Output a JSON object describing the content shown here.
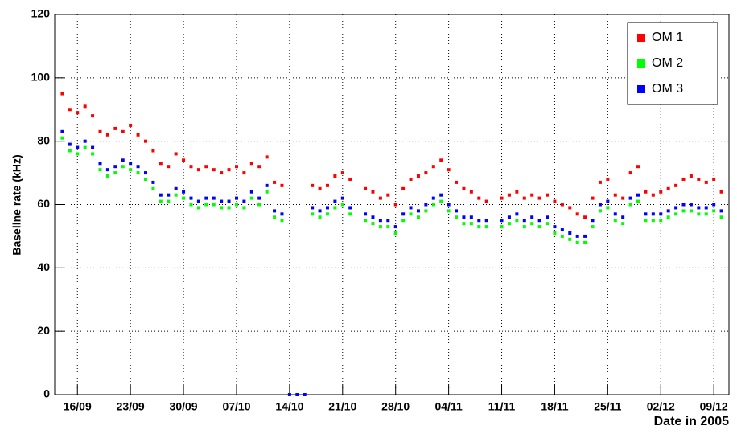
{
  "chart_data": {
    "type": "scatter",
    "y_label": "Baseline rate (kHz)",
    "x_label": "Date in 2005",
    "x": [
      "2005-09-14",
      "2005-09-15",
      "2005-09-16",
      "2005-09-17",
      "2005-09-18",
      "2005-09-19",
      "2005-09-20",
      "2005-09-21",
      "2005-09-22",
      "2005-09-23",
      "2005-09-24",
      "2005-09-25",
      "2005-09-26",
      "2005-09-27",
      "2005-09-28",
      "2005-09-29",
      "2005-09-30",
      "2005-10-01",
      "2005-10-02",
      "2005-10-03",
      "2005-10-04",
      "2005-10-05",
      "2005-10-06",
      "2005-10-07",
      "2005-10-08",
      "2005-10-09",
      "2005-10-10",
      "2005-10-11",
      "2005-10-12",
      "2005-10-13",
      "2005-10-14",
      "2005-10-15",
      "2005-10-16",
      "2005-10-17",
      "2005-10-18",
      "2005-10-19",
      "2005-10-20",
      "2005-10-21",
      "2005-10-22",
      "2005-10-23",
      "2005-10-24",
      "2005-10-25",
      "2005-10-26",
      "2005-10-27",
      "2005-10-28",
      "2005-10-29",
      "2005-10-30",
      "2005-10-31",
      "2005-11-01",
      "2005-11-02",
      "2005-11-03",
      "2005-11-04",
      "2005-11-05",
      "2005-11-06",
      "2005-11-07",
      "2005-11-08",
      "2005-11-09",
      "2005-11-10",
      "2005-11-11",
      "2005-11-12",
      "2005-11-13",
      "2005-11-14",
      "2005-11-15",
      "2005-11-16",
      "2005-11-17",
      "2005-11-18",
      "2005-11-19",
      "2005-11-20",
      "2005-11-21",
      "2005-11-22",
      "2005-11-23",
      "2005-11-24",
      "2005-11-25",
      "2005-11-26",
      "2005-11-27",
      "2005-11-28",
      "2005-11-29",
      "2005-11-30",
      "2005-12-01",
      "2005-12-02",
      "2005-12-03",
      "2005-12-04",
      "2005-12-05",
      "2005-12-06",
      "2005-12-07",
      "2005-12-08",
      "2005-12-09",
      "2005-12-10"
    ],
    "series": [
      {
        "name": "OM 1",
        "color": "#ff0000",
        "values": [
          95,
          90,
          89,
          91,
          88,
          83,
          82,
          84,
          83,
          85,
          82,
          80,
          77,
          73,
          72,
          76,
          74,
          72,
          71,
          72,
          71,
          70,
          71,
          72,
          70,
          73,
          72,
          75,
          67,
          66,
          null,
          null,
          null,
          66,
          65,
          66,
          69,
          70,
          68,
          null,
          65,
          64,
          62,
          63,
          60,
          65,
          68,
          69,
          70,
          72,
          74,
          71,
          67,
          65,
          64,
          62,
          61,
          null,
          62,
          63,
          64,
          62,
          63,
          62,
          63,
          61,
          60,
          59,
          57,
          56,
          62,
          67,
          68,
          63,
          62,
          70,
          72,
          64,
          63,
          64,
          65,
          66,
          68,
          69,
          68,
          67,
          68,
          64
        ]
      },
      {
        "name": "OM 2",
        "color": "#00ff00",
        "values": [
          81,
          77,
          76,
          78,
          76,
          71,
          69,
          70,
          72,
          71,
          70,
          68,
          65,
          61,
          61,
          63,
          62,
          60,
          59,
          60,
          60,
          59,
          59,
          60,
          59,
          62,
          60,
          64,
          56,
          55,
          null,
          null,
          null,
          57,
          56,
          57,
          59,
          60,
          57,
          null,
          55,
          54,
          53,
          53,
          51,
          55,
          57,
          56,
          58,
          60,
          61,
          58,
          56,
          54,
          54,
          53,
          53,
          null,
          53,
          54,
          55,
          53,
          54,
          53,
          54,
          51,
          50,
          49,
          48,
          48,
          53,
          58,
          59,
          55,
          54,
          60,
          61,
          55,
          55,
          55,
          56,
          57,
          58,
          58,
          57,
          57,
          58,
          56
        ]
      },
      {
        "name": "OM 3",
        "color": "#0000ff",
        "values": [
          83,
          79,
          78,
          80,
          78,
          73,
          71,
          72,
          74,
          73,
          72,
          70,
          67,
          63,
          63,
          65,
          64,
          62,
          61,
          62,
          62,
          61,
          61,
          62,
          61,
          64,
          62,
          66,
          58,
          57,
          0,
          0,
          0,
          59,
          58,
          59,
          61,
          62,
          59,
          null,
          57,
          56,
          55,
          55,
          53,
          57,
          59,
          58,
          60,
          62,
          63,
          60,
          58,
          56,
          56,
          55,
          55,
          null,
          55,
          56,
          57,
          55,
          56,
          55,
          56,
          53,
          52,
          51,
          50,
          50,
          55,
          60,
          61,
          57,
          56,
          62,
          63,
          57,
          57,
          57,
          58,
          59,
          60,
          60,
          59,
          59,
          60,
          58
        ]
      }
    ],
    "xlim": [
      "2005-09-13",
      "2005-12-11"
    ],
    "xticks": [
      {
        "value": "2005-09-16",
        "label": "16/09"
      },
      {
        "value": "2005-09-23",
        "label": "23/09"
      },
      {
        "value": "2005-09-30",
        "label": "30/09"
      },
      {
        "value": "2005-10-07",
        "label": "07/10"
      },
      {
        "value": "2005-10-14",
        "label": "14/10"
      },
      {
        "value": "2005-10-21",
        "label": "21/10"
      },
      {
        "value": "2005-10-28",
        "label": "28/10"
      },
      {
        "value": "2005-11-04",
        "label": "04/11"
      },
      {
        "value": "2005-11-11",
        "label": "11/11"
      },
      {
        "value": "2005-11-18",
        "label": "18/11"
      },
      {
        "value": "2005-11-25",
        "label": "25/11"
      },
      {
        "value": "2005-12-02",
        "label": "02/12"
      },
      {
        "value": "2005-12-09",
        "label": "09/12"
      }
    ],
    "ylim": [
      0,
      120
    ],
    "yticks": [
      0,
      20,
      40,
      60,
      80,
      100,
      120
    ],
    "grid": true,
    "legend": "top-right"
  }
}
